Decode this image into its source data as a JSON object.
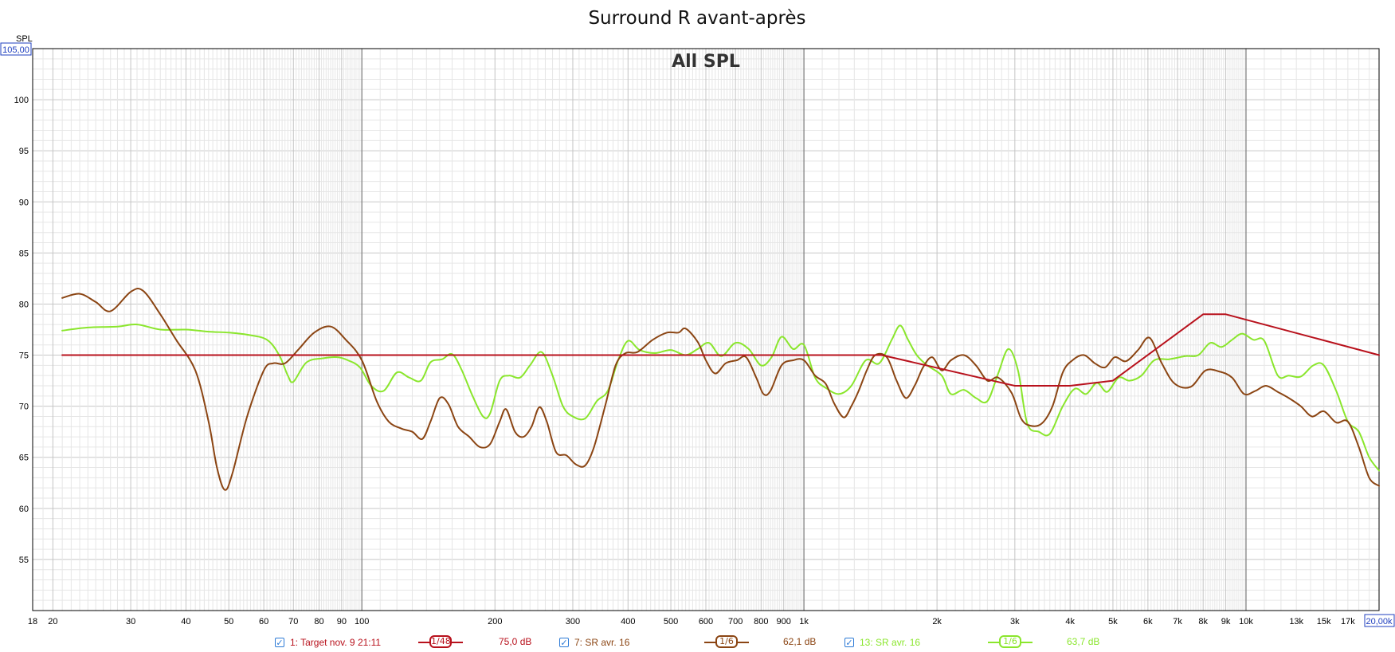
{
  "chart_data": {
    "type": "line",
    "title": "Surround R avant-après",
    "subtitle": "All SPL",
    "ylabel": "SPL",
    "x_scale": "log",
    "xlim": [
      18,
      20000
    ],
    "ylim": [
      50,
      105
    ],
    "y_top_label": "105,00",
    "x_end_label": "20,00k",
    "y_ticks": [
      55,
      60,
      65,
      70,
      75,
      80,
      85,
      90,
      95,
      100
    ],
    "x_ticks": [
      {
        "v": 18,
        "label": "18"
      },
      {
        "v": 20,
        "label": "20"
      },
      {
        "v": 30,
        "label": "30"
      },
      {
        "v": 40,
        "label": "40"
      },
      {
        "v": 50,
        "label": "50"
      },
      {
        "v": 60,
        "label": "60"
      },
      {
        "v": 70,
        "label": "70"
      },
      {
        "v": 80,
        "label": "80"
      },
      {
        "v": 90,
        "label": "90"
      },
      {
        "v": 100,
        "label": "100"
      },
      {
        "v": 200,
        "label": "200"
      },
      {
        "v": 300,
        "label": "300"
      },
      {
        "v": 400,
        "label": "400"
      },
      {
        "v": 500,
        "label": "500"
      },
      {
        "v": 600,
        "label": "600"
      },
      {
        "v": 700,
        "label": "700"
      },
      {
        "v": 800,
        "label": "800"
      },
      {
        "v": 900,
        "label": "900"
      },
      {
        "v": 1000,
        "label": "1k"
      },
      {
        "v": 2000,
        "label": "2k"
      },
      {
        "v": 3000,
        "label": "3k"
      },
      {
        "v": 4000,
        "label": "4k"
      },
      {
        "v": 5000,
        "label": "5k"
      },
      {
        "v": 6000,
        "label": "6k"
      },
      {
        "v": 7000,
        "label": "7k"
      },
      {
        "v": 8000,
        "label": "8k"
      },
      {
        "v": 9000,
        "label": "9k"
      },
      {
        "v": 10000,
        "label": "10k"
      },
      {
        "v": 13000,
        "label": "13k"
      },
      {
        "v": 15000,
        "label": "15k"
      },
      {
        "v": 17000,
        "label": "17k"
      }
    ],
    "grid": true,
    "series": [
      {
        "name": "1: Target nov. 9 21:11",
        "color": "#b8111c",
        "smoothing": "1/48",
        "level": "75,0 dB",
        "points": [
          [
            21,
            75
          ],
          [
            1500,
            75
          ],
          [
            3000,
            72
          ],
          [
            4000,
            72
          ],
          [
            5000,
            72.5
          ],
          [
            8000,
            79
          ],
          [
            9000,
            79
          ],
          [
            20000,
            75
          ]
        ]
      },
      {
        "name": "7: SR avr. 16",
        "color": "#8b4513",
        "smoothing": "1/6",
        "level": "62,1 dB",
        "points": [
          [
            21,
            80.6
          ],
          [
            23,
            81
          ],
          [
            25,
            80.2
          ],
          [
            27,
            79.3
          ],
          [
            30,
            81.2
          ],
          [
            32,
            81.3
          ],
          [
            35,
            79
          ],
          [
            38,
            76.5
          ],
          [
            42,
            73.5
          ],
          [
            45,
            68.5
          ],
          [
            47,
            64
          ],
          [
            49,
            61.8
          ],
          [
            51,
            63.5
          ],
          [
            55,
            69
          ],
          [
            60,
            73.5
          ],
          [
            63,
            74.2
          ],
          [
            67,
            74.2
          ],
          [
            72,
            75.6
          ],
          [
            78,
            77.2
          ],
          [
            85,
            77.8
          ],
          [
            92,
            76.5
          ],
          [
            100,
            74.5
          ],
          [
            108,
            70.5
          ],
          [
            115,
            68.5
          ],
          [
            123,
            67.8
          ],
          [
            130,
            67.5
          ],
          [
            137,
            66.8
          ],
          [
            143,
            68.5
          ],
          [
            150,
            70.8
          ],
          [
            157,
            70.2
          ],
          [
            165,
            68
          ],
          [
            175,
            67
          ],
          [
            185,
            66
          ],
          [
            195,
            66.3
          ],
          [
            205,
            68.5
          ],
          [
            212,
            69.7
          ],
          [
            222,
            67.5
          ],
          [
            232,
            67
          ],
          [
            242,
            68
          ],
          [
            252,
            69.9
          ],
          [
            262,
            68.5
          ],
          [
            275,
            65.5
          ],
          [
            290,
            65.2
          ],
          [
            305,
            64.3
          ],
          [
            320,
            64.2
          ],
          [
            335,
            66
          ],
          [
            355,
            70
          ],
          [
            375,
            74
          ],
          [
            395,
            75.2
          ],
          [
            420,
            75.3
          ],
          [
            455,
            76.5
          ],
          [
            490,
            77.2
          ],
          [
            520,
            77.2
          ],
          [
            540,
            77.6
          ],
          [
            575,
            76.3
          ],
          [
            600,
            74.5
          ],
          [
            630,
            73.2
          ],
          [
            665,
            74.2
          ],
          [
            705,
            74.5
          ],
          [
            740,
            74.8
          ],
          [
            780,
            72.8
          ],
          [
            810,
            71.2
          ],
          [
            840,
            71.5
          ],
          [
            890,
            74
          ],
          [
            945,
            74.5
          ],
          [
            1000,
            74.5
          ],
          [
            1060,
            73
          ],
          [
            1120,
            72.2
          ],
          [
            1170,
            70.3
          ],
          [
            1230,
            68.9
          ],
          [
            1280,
            70
          ],
          [
            1330,
            71.5
          ],
          [
            1390,
            73.6
          ],
          [
            1450,
            75
          ],
          [
            1540,
            74.8
          ],
          [
            1620,
            72.5
          ],
          [
            1700,
            70.8
          ],
          [
            1780,
            72
          ],
          [
            1860,
            73.8
          ],
          [
            1950,
            74.8
          ],
          [
            2050,
            73.5
          ],
          [
            2150,
            74.5
          ],
          [
            2300,
            75
          ],
          [
            2450,
            74
          ],
          [
            2600,
            72.5
          ],
          [
            2750,
            72.8
          ],
          [
            2950,
            71.3
          ],
          [
            3100,
            68.8
          ],
          [
            3250,
            68.1
          ],
          [
            3450,
            68.3
          ],
          [
            3650,
            70
          ],
          [
            3850,
            73.3
          ],
          [
            4050,
            74.5
          ],
          [
            4300,
            75
          ],
          [
            4550,
            74.2
          ],
          [
            4800,
            73.8
          ],
          [
            5050,
            74.8
          ],
          [
            5350,
            74.4
          ],
          [
            5700,
            75.5
          ],
          [
            6050,
            76.7
          ],
          [
            6450,
            74.2
          ],
          [
            6900,
            72.2
          ],
          [
            7500,
            71.9
          ],
          [
            8100,
            73.5
          ],
          [
            8700,
            73.4
          ],
          [
            9300,
            72.8
          ],
          [
            9900,
            71.2
          ],
          [
            10500,
            71.5
          ],
          [
            11100,
            72
          ],
          [
            11800,
            71.4
          ],
          [
            12500,
            70.8
          ],
          [
            13300,
            70
          ],
          [
            14100,
            69
          ],
          [
            15000,
            69.5
          ],
          [
            16000,
            68.4
          ],
          [
            17000,
            68.5
          ],
          [
            18000,
            66
          ],
          [
            19000,
            63
          ],
          [
            20000,
            62.2
          ]
        ]
      },
      {
        "name": "13: SR avr. 16",
        "color": "#8ae62c",
        "smoothing": "1/6",
        "level": "63,7 dB",
        "points": [
          [
            21,
            77.4
          ],
          [
            24,
            77.7
          ],
          [
            28,
            77.8
          ],
          [
            31,
            78
          ],
          [
            35,
            77.5
          ],
          [
            40,
            77.5
          ],
          [
            45,
            77.3
          ],
          [
            50,
            77.2
          ],
          [
            55,
            77
          ],
          [
            61,
            76.5
          ],
          [
            65,
            75
          ],
          [
            68,
            73
          ],
          [
            70,
            72.4
          ],
          [
            75,
            74.3
          ],
          [
            82,
            74.7
          ],
          [
            88,
            74.8
          ],
          [
            93,
            74.5
          ],
          [
            99,
            73.8
          ],
          [
            105,
            72
          ],
          [
            112,
            71.5
          ],
          [
            120,
            73.3
          ],
          [
            128,
            72.8
          ],
          [
            136,
            72.5
          ],
          [
            143,
            74.3
          ],
          [
            152,
            74.6
          ],
          [
            160,
            75.1
          ],
          [
            168,
            73.6
          ],
          [
            178,
            71
          ],
          [
            188,
            69
          ],
          [
            195,
            69.3
          ],
          [
            205,
            72.5
          ],
          [
            215,
            73
          ],
          [
            228,
            72.8
          ],
          [
            240,
            74
          ],
          [
            255,
            75.3
          ],
          [
            270,
            73
          ],
          [
            285,
            70
          ],
          [
            300,
            69
          ],
          [
            320,
            68.8
          ],
          [
            340,
            70.5
          ],
          [
            360,
            71.5
          ],
          [
            380,
            74.5
          ],
          [
            400,
            76.4
          ],
          [
            425,
            75.5
          ],
          [
            460,
            75.2
          ],
          [
            500,
            75.5
          ],
          [
            540,
            75
          ],
          [
            575,
            75.6
          ],
          [
            610,
            76.2
          ],
          [
            650,
            74.9
          ],
          [
            700,
            76.2
          ],
          [
            750,
            75.6
          ],
          [
            800,
            74
          ],
          [
            845,
            74.8
          ],
          [
            890,
            76.8
          ],
          [
            945,
            75.6
          ],
          [
            1000,
            76
          ],
          [
            1060,
            72.8
          ],
          [
            1120,
            71.8
          ],
          [
            1200,
            71.2
          ],
          [
            1280,
            72
          ],
          [
            1380,
            74.5
          ],
          [
            1480,
            74.2
          ],
          [
            1580,
            76.5
          ],
          [
            1650,
            77.9
          ],
          [
            1720,
            76.5
          ],
          [
            1800,
            75
          ],
          [
            1900,
            74
          ],
          [
            2050,
            73
          ],
          [
            2150,
            71.2
          ],
          [
            2300,
            71.6
          ],
          [
            2450,
            70.8
          ],
          [
            2600,
            70.5
          ],
          [
            2750,
            73.2
          ],
          [
            2900,
            75.6
          ],
          [
            3050,
            73.5
          ],
          [
            3200,
            68.3
          ],
          [
            3400,
            67.5
          ],
          [
            3600,
            67.3
          ],
          [
            3850,
            70
          ],
          [
            4100,
            71.7
          ],
          [
            4350,
            71.2
          ],
          [
            4600,
            72.3
          ],
          [
            4850,
            71.4
          ],
          [
            5150,
            72.8
          ],
          [
            5450,
            72.5
          ],
          [
            5800,
            73
          ],
          [
            6200,
            74.5
          ],
          [
            6700,
            74.6
          ],
          [
            7300,
            74.9
          ],
          [
            7800,
            75
          ],
          [
            8300,
            76.2
          ],
          [
            8800,
            75.8
          ],
          [
            9300,
            76.5
          ],
          [
            9800,
            77.1
          ],
          [
            10400,
            76.5
          ],
          [
            11000,
            76.4
          ],
          [
            11800,
            73
          ],
          [
            12500,
            73
          ],
          [
            13300,
            72.9
          ],
          [
            14200,
            74
          ],
          [
            15000,
            74
          ],
          [
            16000,
            71.5
          ],
          [
            17000,
            68.5
          ],
          [
            18000,
            67.5
          ],
          [
            19000,
            65
          ],
          [
            20000,
            63.7
          ]
        ]
      }
    ]
  },
  "legend": [
    {
      "label": "1: Target nov. 9 21:11",
      "smoothing": "1/48",
      "level": "75,0 dB",
      "color": "#b8111c"
    },
    {
      "label": "7: SR avr. 16",
      "smoothing": "1/6",
      "level": "62,1 dB",
      "color": "#8b4513"
    },
    {
      "label": "13: SR avr. 16",
      "smoothing": "1/6",
      "level": "63,7 dB",
      "color": "#8ae62c"
    }
  ],
  "check_glyph": "✓"
}
